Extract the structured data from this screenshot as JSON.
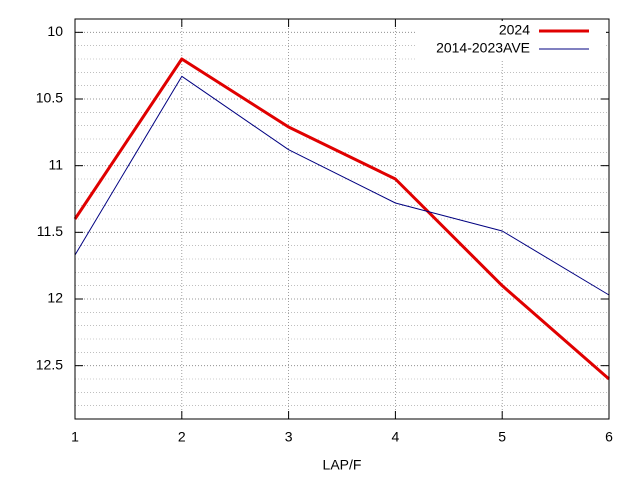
{
  "chart_data": {
    "type": "line",
    "x_label": "LAP/F",
    "x": [
      1,
      2,
      3,
      4,
      5,
      6
    ],
    "series": [
      {
        "name": "2024",
        "color": "#e00000",
        "width": 3,
        "values": [
          11.4,
          10.2,
          10.71,
          11.1,
          11.9,
          12.6
        ]
      },
      {
        "name": "2014-2023AVE",
        "color": "#000080",
        "width": 1,
        "values": [
          11.67,
          10.33,
          10.88,
          11.28,
          11.49,
          11.97
        ]
      }
    ],
    "xlim": [
      1,
      6
    ],
    "xticks": [
      1,
      2,
      3,
      4,
      5,
      6
    ],
    "ylim": [
      12.9,
      9.9
    ],
    "yticks": [
      10,
      10.5,
      11,
      11.5,
      12,
      12.5
    ],
    "grid": true,
    "minor_per_major": 5,
    "legend": "top-right"
  }
}
